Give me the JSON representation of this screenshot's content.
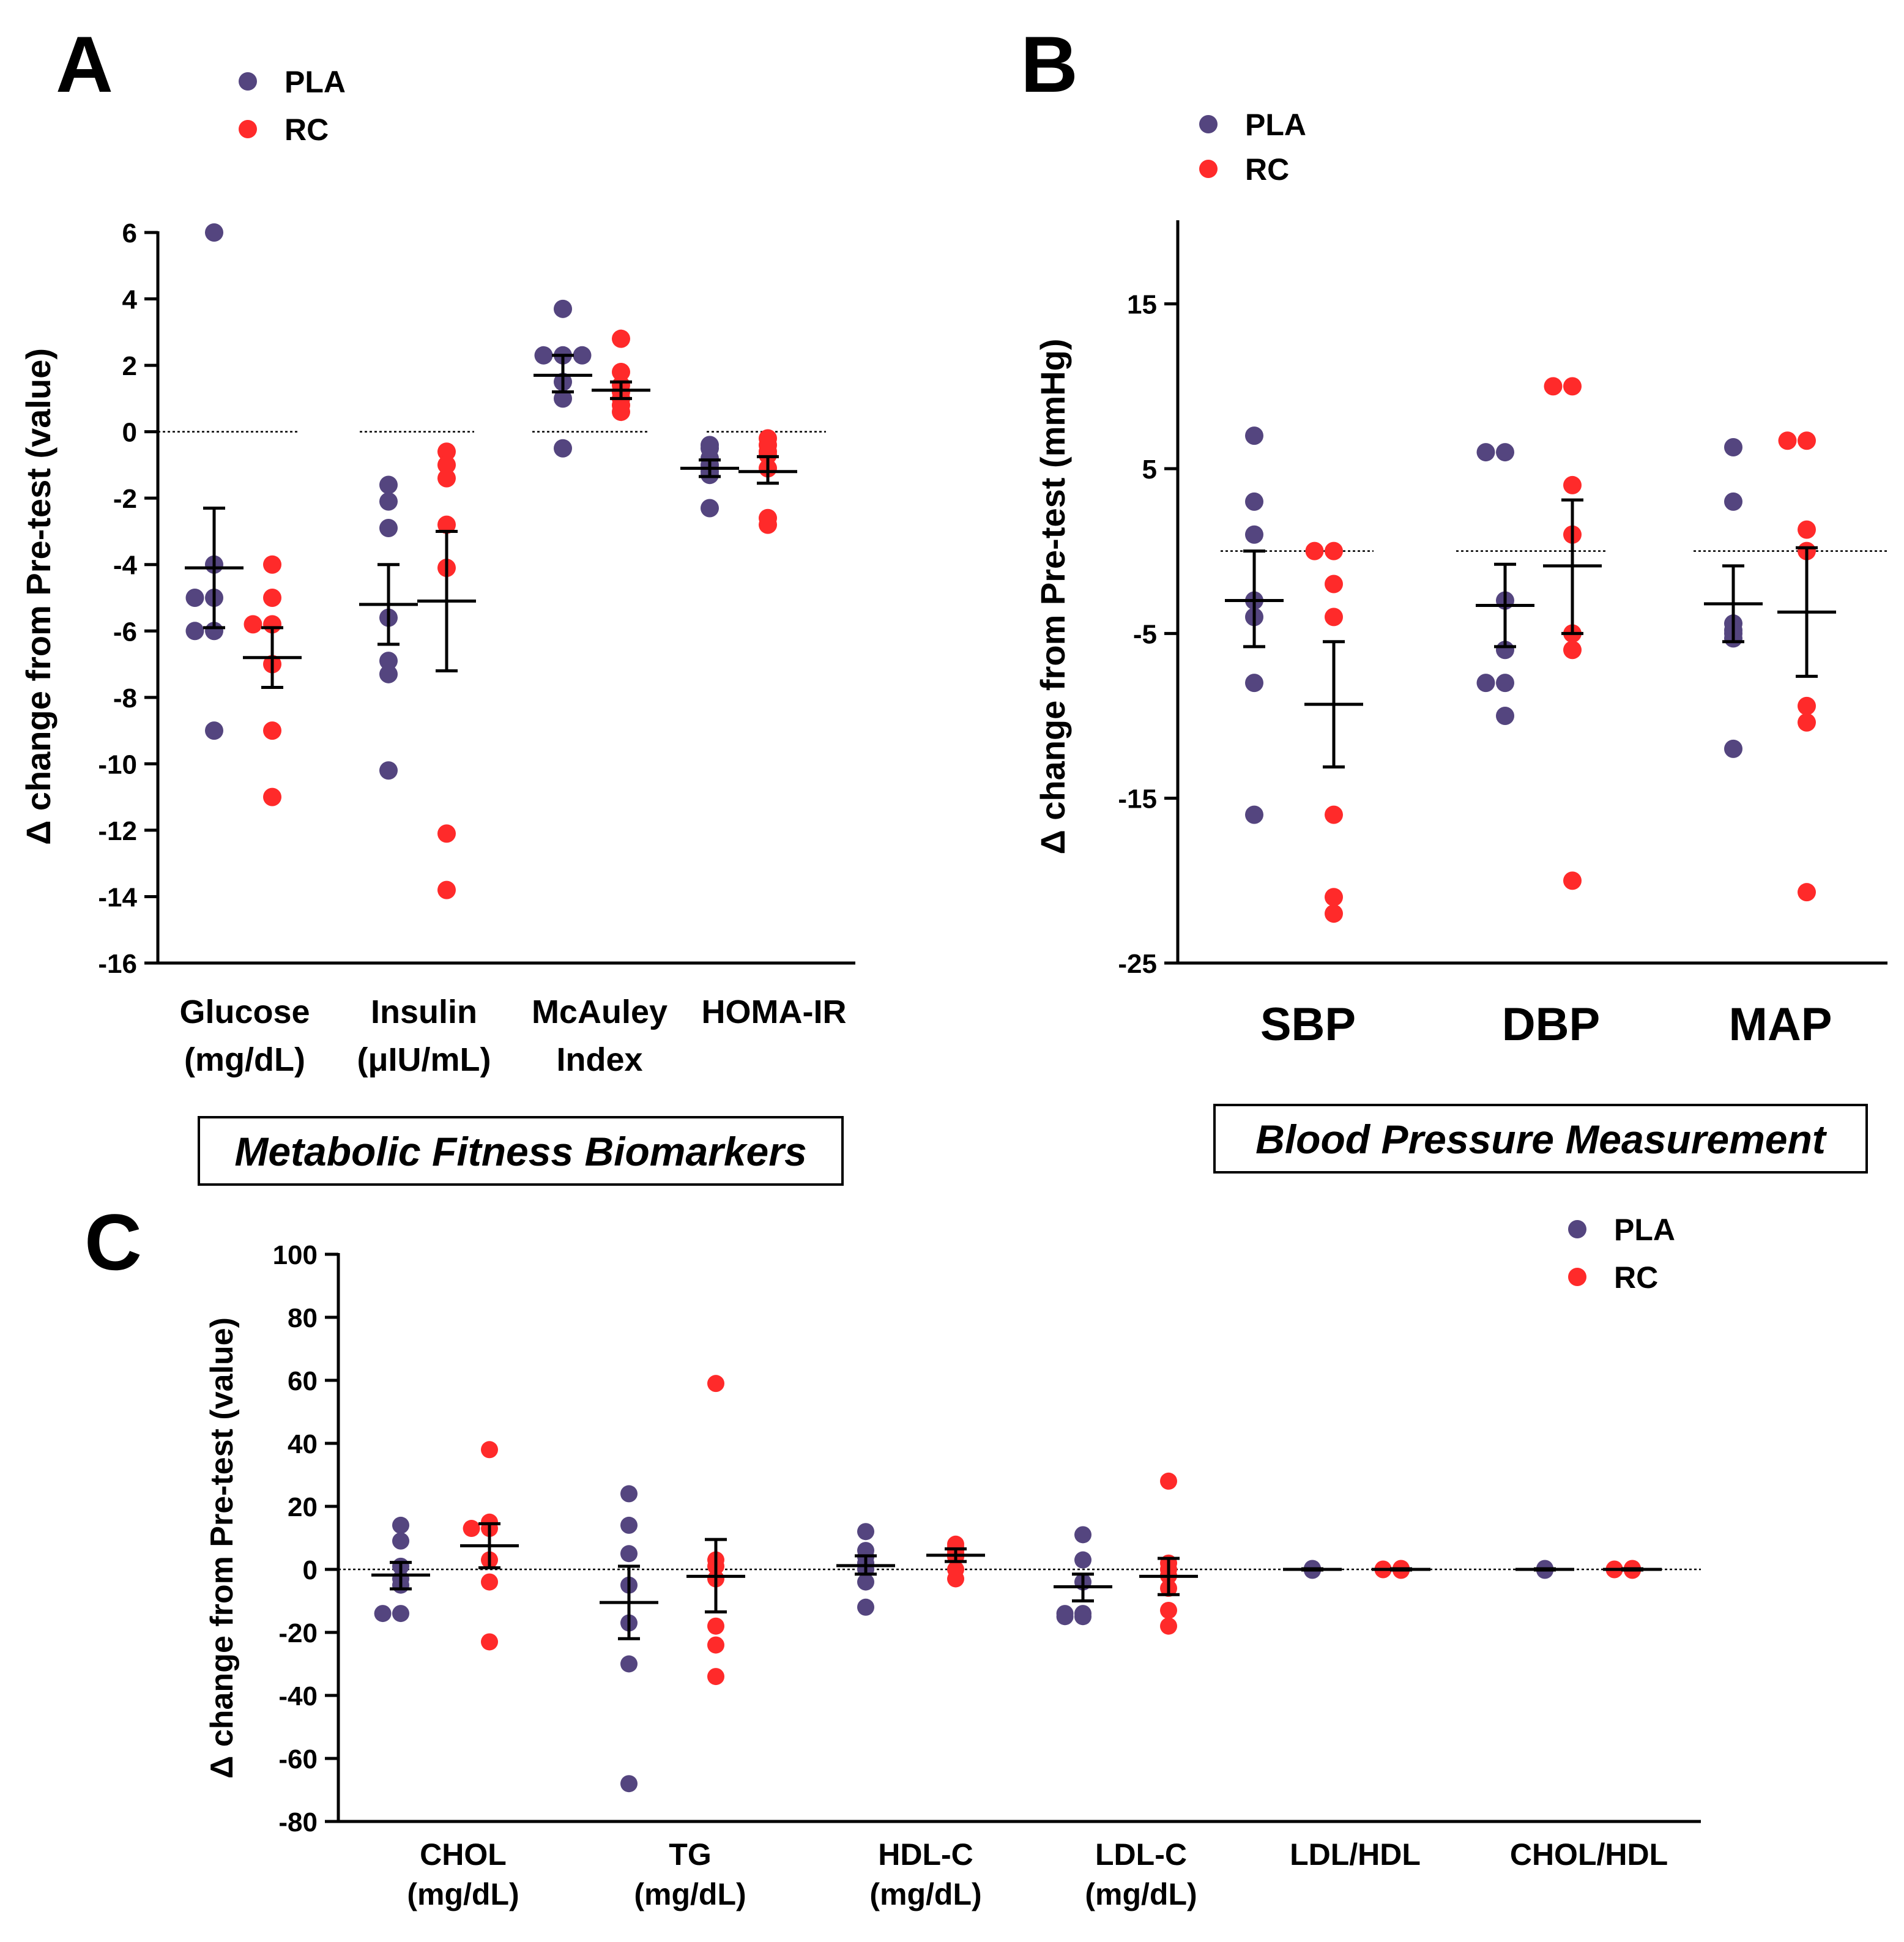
{
  "colors": {
    "PLA": "#54457f",
    "RC": "#ff2a2a",
    "axis": "#000000"
  },
  "legend": {
    "PLA": "PLA",
    "RC": "RC"
  },
  "chart_data": [
    {
      "panel": "A",
      "type": "scatter",
      "title": "",
      "box_label": "Metabolic Fitness Biomarkers",
      "ylabel": "Δ change from Pre-test (value)",
      "ylim": [
        -16,
        6
      ],
      "yticks": [
        6,
        4,
        2,
        0,
        -2,
        -4,
        -6,
        -8,
        -10,
        -12,
        -14,
        -16
      ],
      "categories": [
        [
          "Glucose",
          "(mg/dL)"
        ],
        [
          "Insulin",
          "(μIU/mL)"
        ],
        [
          "McAuley",
          "Index"
        ],
        [
          "HOMA-IR"
        ]
      ],
      "groups": [
        {
          "series": "PLA",
          "points": [
            6,
            -4,
            -5,
            -5,
            -6,
            -6,
            -9
          ],
          "mean": -4.1,
          "lo": -5.9,
          "hi": -2.3
        },
        {
          "series": "RC",
          "points": [
            -4,
            -5,
            -5.8,
            -5.8,
            -7,
            -9,
            -11
          ],
          "mean": -6.8,
          "lo": -7.7,
          "hi": -5.9
        },
        {
          "series": "PLA",
          "points": [
            -1.6,
            -2.1,
            -2.9,
            -5.6,
            -6.9,
            -7.3,
            -10.2
          ],
          "mean": -5.2,
          "lo": -6.4,
          "hi": -4.0
        },
        {
          "series": "RC",
          "points": [
            -0.6,
            -1.0,
            -1.4,
            -2.8,
            -4.1,
            -12.1,
            -13.8
          ],
          "mean": -5.1,
          "lo": -7.2,
          "hi": -3.0
        },
        {
          "series": "PLA",
          "points": [
            3.7,
            2.3,
            2.3,
            2.3,
            1.5,
            1.0,
            -0.5
          ],
          "mean": 1.7,
          "lo": 1.2,
          "hi": 2.3
        },
        {
          "series": "RC",
          "points": [
            2.8,
            1.8,
            1.4,
            1.2,
            1.0,
            0.8,
            0.6
          ],
          "mean": 1.25,
          "lo": 1.0,
          "hi": 1.5
        },
        {
          "series": "PLA",
          "points": [
            -0.4,
            -0.5,
            -0.8,
            -1.0,
            -1.2,
            -1.3,
            -2.3
          ],
          "mean": -1.1,
          "lo": -1.35,
          "hi": -0.85
        },
        {
          "series": "RC",
          "points": [
            -0.2,
            -0.4,
            -0.6,
            -0.7,
            -1.1,
            -2.6,
            -2.8
          ],
          "mean": -1.2,
          "lo": -1.55,
          "hi": -0.75
        }
      ]
    },
    {
      "panel": "B",
      "type": "scatter",
      "title": "",
      "box_label": "Blood Pressure Measurement",
      "ylabel": "Δ change from Pre-test (mmHg)",
      "ylim": [
        -25,
        20
      ],
      "yticks": [
        15,
        5,
        -5,
        -15,
        -25
      ],
      "categories": [
        [
          "SBP"
        ],
        [
          "DBP"
        ],
        [
          "MAP"
        ]
      ],
      "groups": [
        {
          "series": "PLA",
          "points": [
            7,
            3,
            1,
            -3,
            -4,
            -8,
            -16
          ],
          "mean": -3,
          "lo": -5.8,
          "hi": 0
        },
        {
          "series": "RC",
          "points": [
            0,
            0,
            -2,
            -4,
            -16,
            -21,
            -22
          ],
          "mean": -9.3,
          "lo": -13.1,
          "hi": -5.5
        },
        {
          "series": "PLA",
          "points": [
            6,
            6,
            -3,
            -6,
            -8,
            -8,
            -10
          ],
          "mean": -3.3,
          "lo": -5.8,
          "hi": -0.8
        },
        {
          "series": "RC",
          "points": [
            10,
            10,
            4,
            1,
            -5,
            -6,
            -20
          ],
          "mean": -0.9,
          "lo": -5,
          "hi": 3.1
        },
        {
          "series": "PLA",
          "points": [
            6.3,
            3,
            -4.4,
            -4.8,
            -5,
            -5.3,
            -12
          ],
          "mean": -3.2,
          "lo": -5.5,
          "hi": -0.9
        },
        {
          "series": "RC",
          "points": [
            6.7,
            6.7,
            1.3,
            0,
            -9.4,
            -10.4,
            -20.7
          ],
          "mean": -3.7,
          "lo": -7.6,
          "hi": 0.2
        }
      ]
    },
    {
      "panel": "C",
      "type": "scatter",
      "title": "",
      "ylabel": "Δ change from Pre-test (value)",
      "ylim": [
        -80,
        100
      ],
      "yticks": [
        100,
        80,
        60,
        40,
        20,
        0,
        -20,
        -40,
        -60,
        -80
      ],
      "categories": [
        [
          "CHOL",
          "(mg/dL)"
        ],
        [
          "TG",
          "(mg/dL)"
        ],
        [
          "HDL-C",
          "(mg/dL)"
        ],
        [
          "LDL-C",
          "(mg/dL)"
        ],
        [
          "LDL/HDL"
        ],
        [
          "CHOL/HDL"
        ]
      ],
      "groups": [
        {
          "series": "PLA",
          "points": [
            14,
            9,
            1,
            -3,
            -5,
            -14,
            -14
          ],
          "mean": -1.8,
          "lo": -6.2,
          "hi": 2.2
        },
        {
          "series": "RC",
          "points": [
            38,
            15,
            13,
            13,
            3,
            -4,
            -23
          ],
          "mean": 7.5,
          "lo": 0.5,
          "hi": 14.5
        },
        {
          "series": "PLA",
          "points": [
            24,
            14,
            5,
            -5,
            -17,
            -30,
            -68
          ],
          "mean": -10.5,
          "lo": -22,
          "hi": 1
        },
        {
          "series": "RC",
          "points": [
            59,
            3,
            1,
            -3,
            -18,
            -24,
            -34
          ],
          "mean": -2.2,
          "lo": -13.5,
          "hi": 9.5
        },
        {
          "series": "PLA",
          "points": [
            12,
            6,
            4,
            2,
            0,
            -4,
            -12
          ],
          "mean": 1.2,
          "lo": -1.5,
          "hi": 4.3
        },
        {
          "series": "RC",
          "points": [
            8,
            7,
            6,
            5,
            4,
            0,
            -3
          ],
          "mean": 4.5,
          "lo": 2.5,
          "hi": 6.5
        },
        {
          "series": "PLA",
          "points": [
            11,
            3,
            -4,
            -14,
            -14,
            -15,
            -15
          ],
          "mean": -5.5,
          "lo": -10,
          "hi": -1.5
        },
        {
          "series": "RC",
          "points": [
            28,
            2,
            0,
            -2,
            -6,
            -13,
            -18
          ],
          "mean": -2.2,
          "lo": -8,
          "hi": 3.5
        },
        {
          "series": "PLA",
          "points": [
            0.3,
            0.2,
            0.1,
            0,
            -0.1,
            -0.2,
            -0.3
          ],
          "mean": 0,
          "lo": -0.2,
          "hi": 0.2
        },
        {
          "series": "RC",
          "points": [
            0.3,
            0.2,
            0.1,
            0,
            -0.1,
            -0.2,
            -0.3,
            0.1,
            -0.1
          ],
          "mean": 0,
          "lo": -0.2,
          "hi": 0.2
        },
        {
          "series": "PLA",
          "points": [
            0.3,
            0.2,
            0.1,
            0,
            -0.1,
            -0.2,
            -0.3
          ],
          "mean": 0,
          "lo": -0.2,
          "hi": 0.2
        },
        {
          "series": "RC",
          "points": [
            0.3,
            0.2,
            0.1,
            0,
            -0.1,
            -0.2,
            -0.3,
            0.1,
            -0.1
          ],
          "mean": 0,
          "lo": -0.2,
          "hi": 0.2
        }
      ]
    }
  ]
}
